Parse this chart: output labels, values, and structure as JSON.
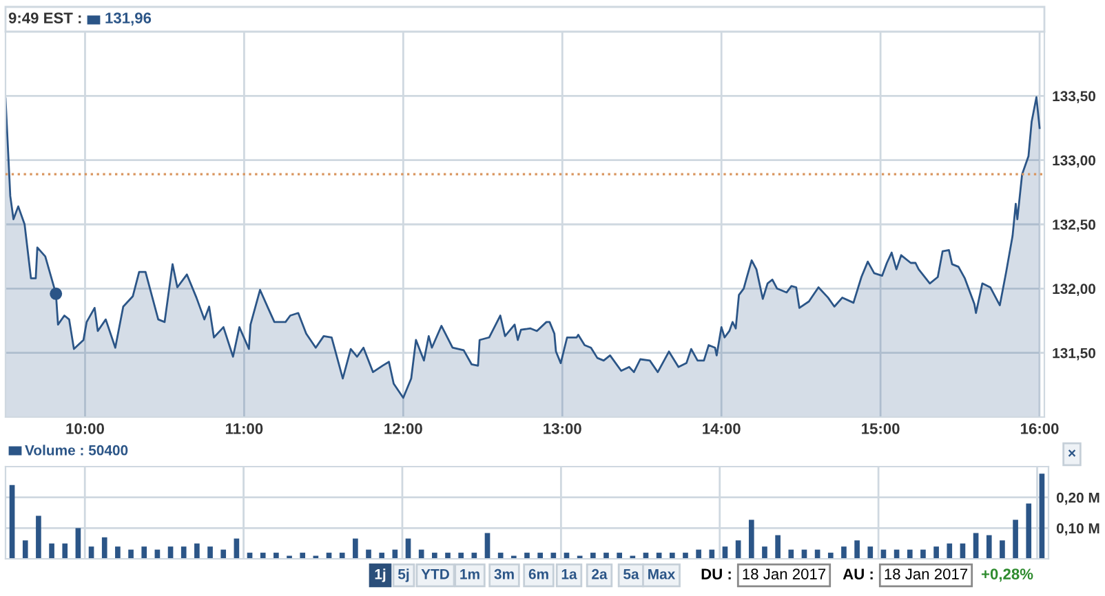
{
  "chart_data": [
    {
      "type": "area",
      "grid": true,
      "annotations": [
        "9:49 EST :",
        "131,96"
      ],
      "x": [
        9.5,
        9.53,
        9.55,
        9.58,
        9.62,
        9.66,
        9.69,
        9.7,
        9.75,
        9.817,
        9.83,
        9.87,
        9.9,
        9.93,
        9.99,
        10.01,
        10.06,
        10.08,
        10.13,
        10.19,
        10.24,
        10.3,
        10.34,
        10.38,
        10.46,
        10.5,
        10.55,
        10.58,
        10.64,
        10.7,
        10.75,
        10.78,
        10.81,
        10.87,
        10.93,
        10.97,
        11.03,
        11.04,
        11.1,
        11.15,
        11.19,
        11.26,
        11.29,
        11.34,
        11.39,
        11.45,
        11.5,
        11.55,
        11.62,
        11.67,
        11.71,
        11.75,
        11.81,
        11.87,
        11.91,
        11.94,
        12.0,
        12.05,
        12.08,
        12.13,
        12.16,
        12.18,
        12.24,
        12.31,
        12.38,
        12.43,
        12.47,
        12.48,
        12.54,
        12.61,
        12.64,
        12.7,
        12.72,
        12.74,
        12.8,
        12.84,
        12.9,
        12.92,
        12.95,
        12.96,
        12.99,
        13.03,
        13.09,
        13.1,
        13.14,
        13.18,
        13.22,
        13.26,
        13.3,
        13.37,
        13.42,
        13.45,
        13.49,
        13.55,
        13.6,
        13.67,
        13.73,
        13.78,
        13.81,
        13.85,
        13.89,
        13.92,
        13.96,
        13.97,
        14.0,
        14.02,
        14.05,
        14.07,
        14.09,
        14.11,
        14.14,
        14.16,
        14.19,
        14.22,
        14.26,
        14.29,
        14.32,
        14.35,
        14.41,
        14.44,
        14.47,
        14.49,
        14.55,
        14.61,
        14.67,
        14.71,
        14.76,
        14.83,
        14.88,
        14.92,
        14.96,
        15.01,
        15.04,
        15.07,
        15.1,
        15.13,
        15.19,
        15.22,
        15.24,
        15.31,
        15.36,
        15.39,
        15.43,
        15.45,
        15.49,
        15.53,
        15.59,
        15.6,
        15.64,
        15.69,
        15.75,
        15.79,
        15.83,
        15.85,
        15.86,
        15.89,
        15.93,
        15.95,
        15.98,
        16.0
      ],
      "series": [
        {
          "color": "#2b5587",
          "values": [
            133.48,
            132.72,
            132.54,
            132.64,
            132.5,
            132.08,
            132.08,
            132.32,
            132.25,
            131.96,
            131.72,
            131.79,
            131.76,
            131.53,
            131.6,
            131.74,
            131.85,
            131.67,
            131.76,
            131.54,
            131.86,
            131.94,
            132.13,
            132.13,
            131.76,
            131.74,
            132.19,
            132.01,
            132.11,
            131.93,
            131.76,
            131.86,
            131.62,
            131.7,
            131.47,
            131.7,
            131.53,
            131.72,
            131.99,
            131.85,
            131.74,
            131.74,
            131.79,
            131.81,
            131.65,
            131.54,
            131.63,
            131.62,
            131.3,
            131.53,
            131.47,
            131.54,
            131.35,
            131.4,
            131.43,
            131.26,
            131.15,
            131.3,
            131.6,
            131.44,
            131.63,
            131.54,
            131.71,
            131.54,
            131.52,
            131.41,
            131.4,
            131.6,
            131.62,
            131.79,
            131.63,
            131.72,
            131.6,
            131.68,
            131.69,
            131.67,
            131.74,
            131.74,
            131.65,
            131.51,
            131.42,
            131.62,
            131.62,
            131.64,
            131.56,
            131.54,
            131.46,
            131.44,
            131.48,
            131.36,
            131.39,
            131.35,
            131.45,
            131.44,
            131.35,
            131.51,
            131.39,
            131.42,
            131.53,
            131.44,
            131.44,
            131.56,
            131.54,
            131.48,
            131.7,
            131.62,
            131.67,
            131.74,
            131.69,
            131.95,
            132.0,
            132.09,
            132.22,
            132.15,
            131.92,
            132.04,
            132.07,
            132.0,
            131.97,
            132.02,
            132.01,
            131.85,
            131.9,
            132.01,
            131.93,
            131.86,
            131.93,
            131.89,
            132.09,
            132.21,
            132.12,
            132.1,
            132.2,
            132.28,
            132.15,
            132.26,
            132.2,
            132.2,
            132.15,
            132.04,
            132.09,
            132.29,
            132.3,
            132.19,
            132.17,
            132.08,
            131.88,
            131.81,
            132.04,
            132.01,
            131.87,
            132.13,
            132.41,
            132.66,
            132.54,
            132.89,
            133.03,
            133.3,
            133.49,
            133.25
          ]
        },
        {
          "type": "scatter",
          "color": "#2b5587",
          "marker": "circle",
          "x": [
            9.817
          ],
          "values": [
            131.96
          ]
        }
      ],
      "ref_lines": [
        {
          "axis": "y",
          "value": 132.89,
          "color": "#d9955e",
          "line_style": "dotted"
        }
      ],
      "xlim": [
        9.5,
        16.03
      ],
      "ylim": [
        131.0,
        134.0
      ],
      "xticks": [
        {
          "value": 10,
          "label": "10:00"
        },
        {
          "value": 11,
          "label": "11:00"
        },
        {
          "value": 12,
          "label": "12:00"
        },
        {
          "value": 13,
          "label": "13:00"
        },
        {
          "value": 14,
          "label": "14:00"
        },
        {
          "value": 15,
          "label": "15:00"
        },
        {
          "value": 16,
          "label": "16:00"
        }
      ],
      "yticks": [
        {
          "value": 131.5,
          "label": "131,50"
        },
        {
          "value": 132.0,
          "label": "132,00"
        },
        {
          "value": 132.5,
          "label": "132,50"
        },
        {
          "value": 133.0,
          "label": "133,00"
        },
        {
          "value": 133.5,
          "label": "133,50"
        }
      ]
    },
    {
      "type": "bar",
      "grid": true,
      "tick_labels": "y",
      "annotations": [
        "Volume : 50400",
        "×",
        "1j",
        "5j",
        "YTD",
        "1m",
        "3m",
        "6m",
        "1a",
        "2a",
        "5a",
        "Max",
        "DU :",
        "18 Jan 2017",
        "AU :",
        "18 Jan 2017",
        "+0,28%"
      ],
      "categories": [
        null,
        null,
        null,
        null,
        null,
        null,
        null,
        null,
        null,
        null,
        null,
        null,
        null,
        null,
        null,
        null,
        null,
        null,
        null,
        null,
        null,
        null,
        null,
        null,
        null,
        null,
        null,
        null,
        null,
        null,
        null,
        null,
        null,
        null,
        null,
        null,
        null,
        null,
        null,
        null,
        null,
        null,
        null,
        null,
        null,
        null,
        null,
        null,
        null,
        null,
        null,
        null,
        null,
        null,
        null,
        null,
        null,
        null,
        null,
        null,
        null,
        null,
        null,
        null,
        null,
        null,
        null,
        null,
        null,
        null,
        null,
        null,
        null,
        null,
        null,
        null,
        null,
        null,
        null
      ],
      "series": [
        {
          "color": "#2b5587",
          "values": [
            0.24,
            0.06,
            0.14,
            0.05,
            0.05,
            0.1,
            0.04,
            0.07,
            0.04,
            0.03,
            0.04,
            0.03,
            0.04,
            0.04,
            0.05,
            0.04,
            0.03,
            0.066,
            0.02,
            0.02,
            0.02,
            0.01,
            0.02,
            0.01,
            0.02,
            0.02,
            0.066,
            0.03,
            0.02,
            0.03,
            0.066,
            0.03,
            0.02,
            0.02,
            0.02,
            0.02,
            0.084,
            0.02,
            0.01,
            0.02,
            0.02,
            0.02,
            0.02,
            0.01,
            0.02,
            0.02,
            0.02,
            0.01,
            0.02,
            0.02,
            0.02,
            0.02,
            0.03,
            0.03,
            0.04,
            0.06,
            0.127,
            0.04,
            0.077,
            0.03,
            0.03,
            0.03,
            0.02,
            0.04,
            0.06,
            0.04,
            0.03,
            0.03,
            0.03,
            0.03,
            0.04,
            0.05,
            0.05,
            0.084,
            0.077,
            0.06,
            0.127,
            0.18,
            0.277
          ]
        }
      ],
      "ylim": [
        0,
        0.3
      ],
      "yticks": [
        {
          "value": 0.1,
          "label": "0,10 M"
        },
        {
          "value": 0.2,
          "label": "0,20 M"
        }
      ]
    }
  ]
}
